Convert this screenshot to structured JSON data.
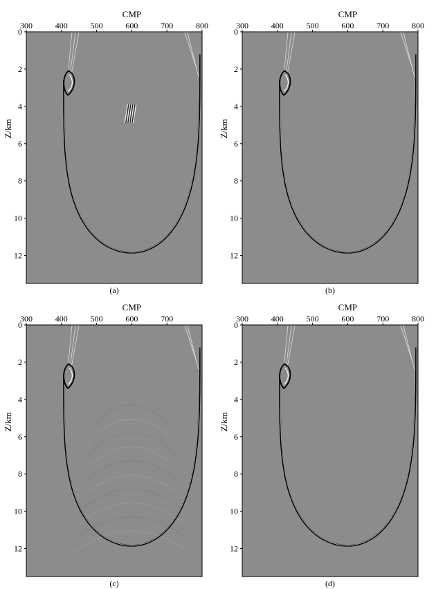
{
  "panels": [
    {
      "id": "a",
      "caption": "(a)",
      "xlabel": "CMP",
      "ylabel": "Z/km",
      "x_ticks": [
        "300",
        "400",
        "500",
        "600",
        "700",
        "800"
      ],
      "y_ticks": [
        "0",
        "2",
        "4",
        "6",
        "8",
        "10",
        "12"
      ],
      "artifact": "wavelet"
    },
    {
      "id": "b",
      "caption": "(b)",
      "xlabel": "CMP",
      "ylabel": "Z/km",
      "x_ticks": [
        "300",
        "400",
        "500",
        "600",
        "700",
        "800"
      ],
      "y_ticks": [
        "0",
        "2",
        "4",
        "6",
        "8",
        "10",
        "12"
      ],
      "artifact": "faint"
    },
    {
      "id": "c",
      "caption": "(c)",
      "xlabel": "CMP",
      "ylabel": "Z/km",
      "x_ticks": [
        "300",
        "400",
        "500",
        "600",
        "700"
      ],
      "y_ticks": [
        "0",
        "2",
        "4",
        "6",
        "8",
        "10",
        "12"
      ],
      "artifact": "strong"
    },
    {
      "id": "d",
      "caption": "(d)",
      "xlabel": "CMP",
      "ylabel": "Z/km",
      "x_ticks": [
        "300",
        "400",
        "500",
        "600",
        "700",
        "800"
      ],
      "y_ticks": [
        "0",
        "2",
        "4",
        "6",
        "8",
        "10",
        "12"
      ],
      "artifact": "clean"
    }
  ],
  "chart_data": [
    {
      "type": "heatmap",
      "panel": "a",
      "xlabel": "CMP",
      "ylabel": "Z/km",
      "xlim": [
        300,
        800
      ],
      "ylim": [
        0,
        13.5
      ],
      "y_reversed": true,
      "colormap": "seismic-gray",
      "background": "#8c8c8c"
    },
    {
      "type": "heatmap",
      "panel": "b",
      "xlabel": "CMP",
      "ylabel": "Z/km",
      "xlim": [
        300,
        800
      ],
      "ylim": [
        0,
        13.5
      ],
      "y_reversed": true,
      "colormap": "seismic-gray",
      "background": "#8c8c8c"
    },
    {
      "type": "heatmap",
      "panel": "c",
      "xlabel": "CMP",
      "ylabel": "Z/km",
      "xlim": [
        300,
        800
      ],
      "ylim": [
        0,
        13.5
      ],
      "y_reversed": true,
      "colormap": "seismic-gray",
      "background": "#8c8c8c"
    },
    {
      "type": "heatmap",
      "panel": "d",
      "xlabel": "CMP",
      "ylabel": "Z/km",
      "xlim": [
        300,
        800
      ],
      "ylim": [
        0,
        13.5
      ],
      "y_reversed": true,
      "colormap": "seismic-gray",
      "background": "#8c8c8c"
    }
  ]
}
